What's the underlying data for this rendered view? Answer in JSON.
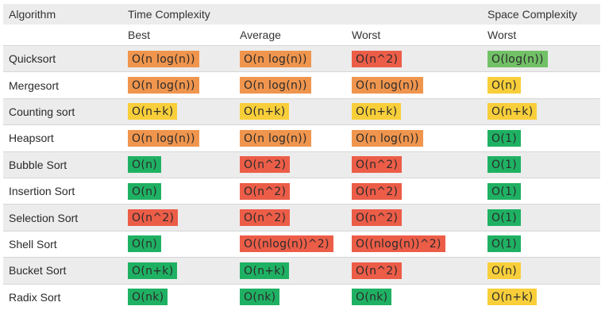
{
  "header": {
    "algorithm": "Algorithm",
    "time_complexity": "Time Complexity",
    "space_complexity": "Space Complexity",
    "best": "Best",
    "average": "Average",
    "worst": "Worst",
    "space_worst": "Worst"
  },
  "colors": {
    "orange": "#f0954d",
    "red": "#ec5d48",
    "green": "#1fb163",
    "lightgreen": "#72c167",
    "yellow": "#f8cf3a"
  },
  "rows": [
    {
      "name": "Quicksort",
      "best": {
        "v": "O(n log(n))",
        "c": "orange"
      },
      "average": {
        "v": "O(n log(n))",
        "c": "orange"
      },
      "worst": {
        "v": "O(n^2)",
        "c": "red"
      },
      "space": {
        "v": "O(log(n))",
        "c": "lightgreen"
      }
    },
    {
      "name": "Mergesort",
      "best": {
        "v": "O(n log(n))",
        "c": "orange"
      },
      "average": {
        "v": "O(n log(n))",
        "c": "orange"
      },
      "worst": {
        "v": "O(n log(n))",
        "c": "orange"
      },
      "space": {
        "v": "O(n)",
        "c": "yellow"
      }
    },
    {
      "name": "Counting sort",
      "best": {
        "v": "O(n+k)",
        "c": "yellow"
      },
      "average": {
        "v": "O(n+k)",
        "c": "yellow"
      },
      "worst": {
        "v": "O(n+k)",
        "c": "yellow"
      },
      "space": {
        "v": "O(n+k)",
        "c": "yellow"
      }
    },
    {
      "name": "Heapsort",
      "best": {
        "v": "O(n log(n))",
        "c": "orange"
      },
      "average": {
        "v": "O(n log(n))",
        "c": "orange"
      },
      "worst": {
        "v": "O(n log(n))",
        "c": "orange"
      },
      "space": {
        "v": "O(1)",
        "c": "green"
      }
    },
    {
      "name": "Bubble Sort",
      "best": {
        "v": "O(n)",
        "c": "green"
      },
      "average": {
        "v": "O(n^2)",
        "c": "red"
      },
      "worst": {
        "v": "O(n^2)",
        "c": "red"
      },
      "space": {
        "v": "O(1)",
        "c": "green"
      }
    },
    {
      "name": "Insertion Sort",
      "best": {
        "v": "O(n)",
        "c": "green"
      },
      "average": {
        "v": "O(n^2)",
        "c": "red"
      },
      "worst": {
        "v": "O(n^2)",
        "c": "red"
      },
      "space": {
        "v": "O(1)",
        "c": "green"
      }
    },
    {
      "name": "Selection Sort",
      "best": {
        "v": "O(n^2)",
        "c": "red"
      },
      "average": {
        "v": "O(n^2)",
        "c": "red"
      },
      "worst": {
        "v": "O(n^2)",
        "c": "red"
      },
      "space": {
        "v": "O(1)",
        "c": "green"
      }
    },
    {
      "name": "Shell Sort",
      "best": {
        "v": "O(n)",
        "c": "green"
      },
      "average": {
        "v": "O((nlog(n))^2)",
        "c": "red"
      },
      "worst": {
        "v": "O((nlog(n))^2)",
        "c": "red"
      },
      "space": {
        "v": "O(1)",
        "c": "green"
      }
    },
    {
      "name": "Bucket Sort",
      "best": {
        "v": "O(n+k)",
        "c": "green"
      },
      "average": {
        "v": "O(n+k)",
        "c": "green"
      },
      "worst": {
        "v": "O(n^2)",
        "c": "red"
      },
      "space": {
        "v": "O(n)",
        "c": "yellow"
      }
    },
    {
      "name": "Radix Sort",
      "best": {
        "v": "O(nk)",
        "c": "green"
      },
      "average": {
        "v": "O(nk)",
        "c": "green"
      },
      "worst": {
        "v": "O(nk)",
        "c": "green"
      },
      "space": {
        "v": "O(n+k)",
        "c": "yellow"
      }
    }
  ]
}
